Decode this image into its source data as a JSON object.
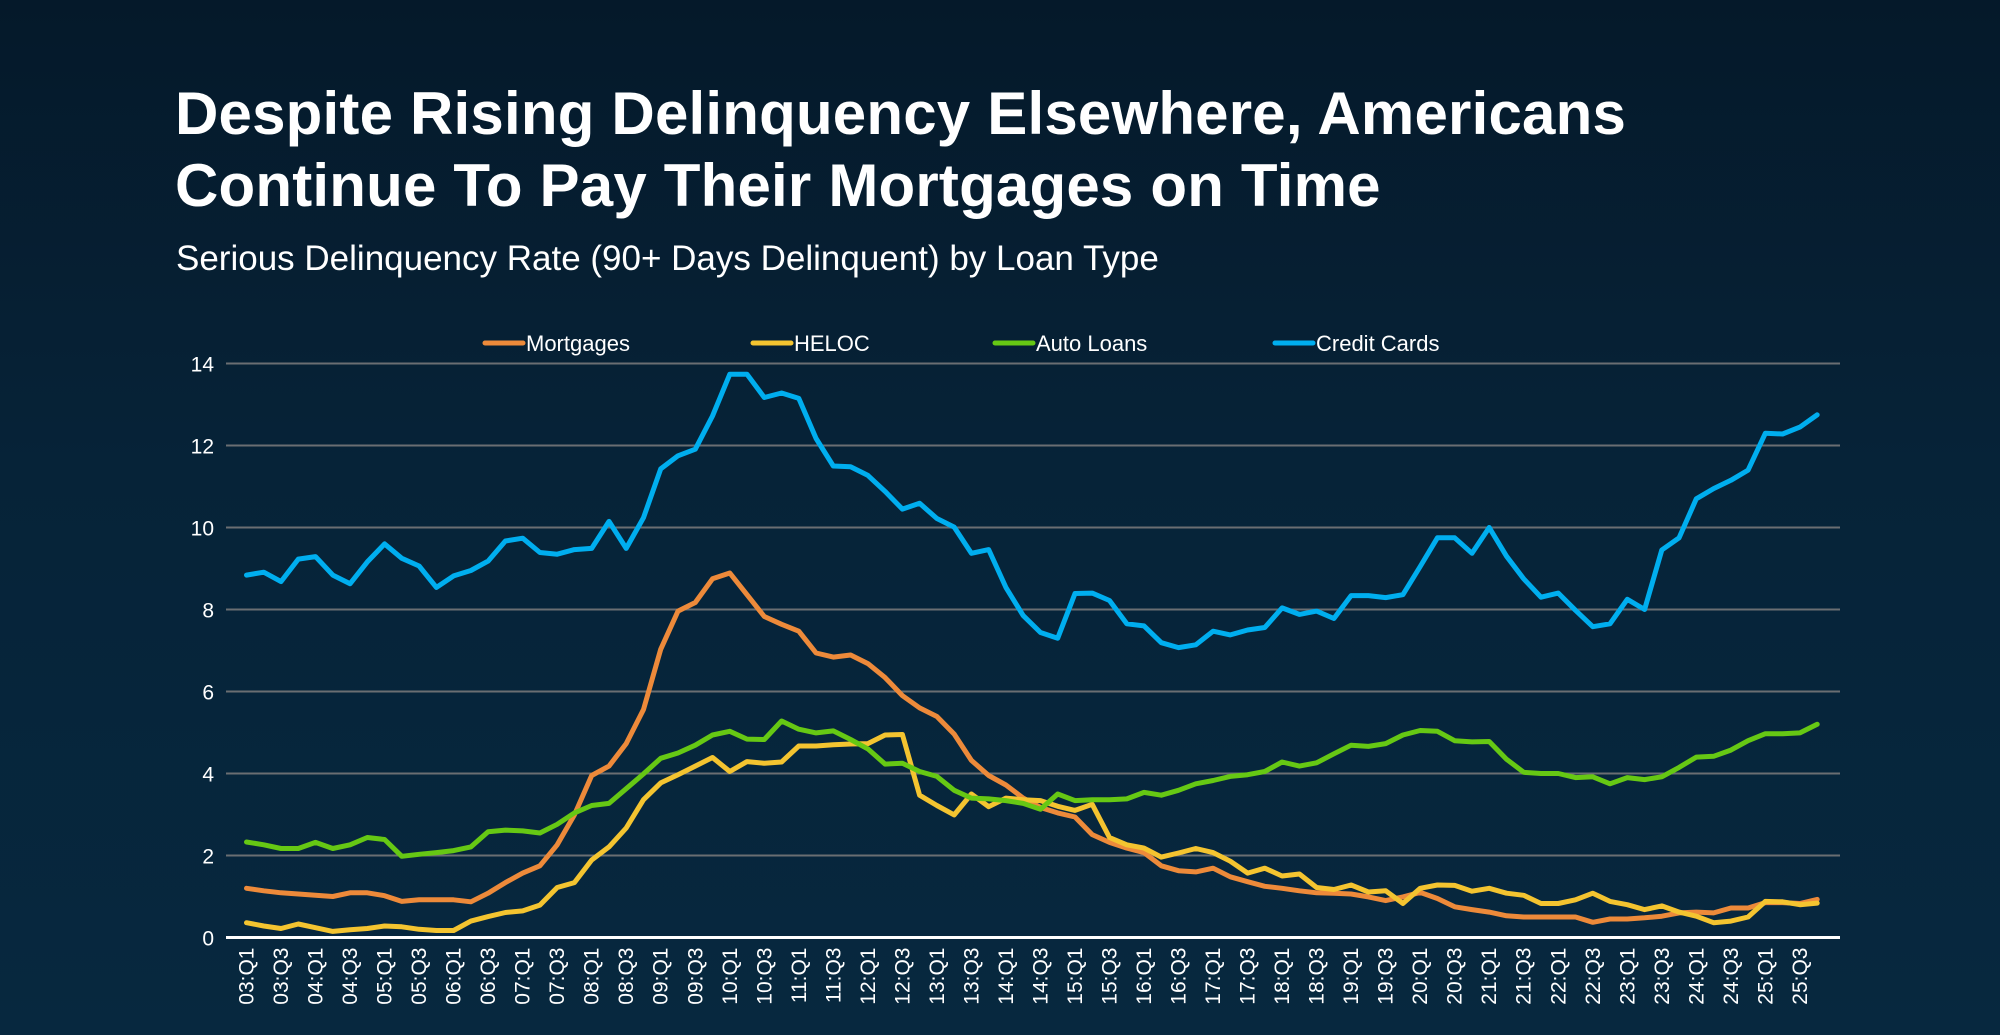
{
  "header": {
    "title_line1": "Despite Rising Delinquency Elsewhere, Americans",
    "title_line2": "Continue To Pay Their Mortgages on Time",
    "subtitle": "Serious Delinquency Rate (90+ Days Delinquent) by Loan Type"
  },
  "chart_data": {
    "type": "line",
    "title": "Serious Delinquency Rate (90+ Days Delinquent) by Loan Type",
    "xlabel": "",
    "ylabel": "",
    "ylim": [
      0,
      14
    ],
    "yticks": [
      0,
      2,
      4,
      6,
      8,
      10,
      12,
      14
    ],
    "grid": true,
    "legend_placement": "top",
    "tick_every": 2,
    "x": [
      "03:Q1",
      "03:Q2",
      "03:Q3",
      "03:Q4",
      "04:Q1",
      "04:Q2",
      "04:Q3",
      "04:Q4",
      "05:Q1",
      "05:Q2",
      "05:Q3",
      "05:Q4",
      "06:Q1",
      "06:Q2",
      "06:Q3",
      "06:Q4",
      "07:Q1",
      "07:Q2",
      "07:Q3",
      "07:Q4",
      "08:Q1",
      "08:Q2",
      "08:Q3",
      "08:Q4",
      "09:Q1",
      "09:Q2",
      "09:Q3",
      "09:Q4",
      "10:Q1",
      "10:Q2",
      "10:Q3",
      "10:Q4",
      "11:Q1",
      "11:Q2",
      "11:Q3",
      "11:Q4",
      "12:Q1",
      "12:Q2",
      "12:Q3",
      "12:Q4",
      "13:Q1",
      "13:Q2",
      "13:Q3",
      "13:Q4",
      "14:Q1",
      "14:Q2",
      "14:Q3",
      "14:Q4",
      "15:Q1",
      "15:Q2",
      "15:Q3",
      "15:Q4",
      "16:Q1",
      "16:Q2",
      "16:Q3",
      "16:Q4",
      "17:Q1",
      "17:Q2",
      "17:Q3",
      "17:Q4",
      "18:Q1",
      "18:Q2",
      "18:Q3",
      "18:Q4",
      "19:Q1",
      "19:Q2",
      "19:Q3",
      "19:Q4",
      "20:Q1",
      "20:Q2",
      "20:Q3",
      "20:Q4",
      "21:Q1",
      "21:Q2",
      "21:Q3",
      "21:Q4",
      "22:Q1",
      "22:Q2",
      "22:Q3",
      "22:Q4",
      "23:Q1",
      "23:Q2",
      "23:Q3",
      "23:Q4",
      "24:Q1",
      "24:Q2",
      "24:Q3",
      "24:Q4",
      "25:Q1",
      "25:Q2",
      "25:Q3",
      "25:Q4"
    ],
    "series": [
      {
        "name": "Mortgages",
        "color": "#ED8A3A",
        "values": [
          1.2,
          1.14,
          1.09,
          1.06,
          1.03,
          1.0,
          1.09,
          1.09,
          1.02,
          0.88,
          0.92,
          0.92,
          0.92,
          0.87,
          1.08,
          1.34,
          1.57,
          1.75,
          2.26,
          2.99,
          3.95,
          4.18,
          4.73,
          5.56,
          7.03,
          7.96,
          8.17,
          8.75,
          8.89,
          8.36,
          7.83,
          7.64,
          7.47,
          6.94,
          6.84,
          6.89,
          6.68,
          6.34,
          5.9,
          5.6,
          5.39,
          4.96,
          4.32,
          3.95,
          3.72,
          3.4,
          3.17,
          3.04,
          2.94,
          2.51,
          2.32,
          2.18,
          2.07,
          1.75,
          1.63,
          1.6,
          1.69,
          1.48,
          1.36,
          1.25,
          1.2,
          1.14,
          1.09,
          1.08,
          1.06,
          0.99,
          0.9,
          0.99,
          1.1,
          0.95,
          0.75,
          0.68,
          0.62,
          0.53,
          0.5,
          0.5,
          0.5,
          0.5,
          0.37,
          0.45,
          0.45,
          0.48,
          0.52,
          0.6,
          0.62,
          0.6,
          0.72,
          0.72,
          0.85,
          0.85,
          0.83,
          0.93
        ]
      },
      {
        "name": "HELOC",
        "color": "#F4C430",
        "values": [
          0.36,
          0.28,
          0.22,
          0.33,
          0.24,
          0.15,
          0.19,
          0.22,
          0.28,
          0.26,
          0.2,
          0.17,
          0.17,
          0.4,
          0.51,
          0.61,
          0.65,
          0.79,
          1.22,
          1.34,
          1.89,
          2.21,
          2.67,
          3.36,
          3.77,
          3.97,
          4.18,
          4.39,
          4.05,
          4.29,
          4.25,
          4.28,
          4.67,
          4.67,
          4.7,
          4.72,
          4.73,
          4.94,
          4.95,
          3.47,
          3.22,
          2.99,
          3.5,
          3.19,
          3.4,
          3.36,
          3.34,
          3.2,
          3.1,
          3.25,
          2.44,
          2.26,
          2.18,
          1.96,
          2.06,
          2.17,
          2.07,
          1.86,
          1.57,
          1.69,
          1.5,
          1.55,
          1.22,
          1.17,
          1.28,
          1.11,
          1.14,
          0.83,
          1.2,
          1.28,
          1.27,
          1.13,
          1.2,
          1.08,
          1.03,
          0.83,
          0.83,
          0.92,
          1.08,
          0.88,
          0.8,
          0.68,
          0.77,
          0.62,
          0.52,
          0.36,
          0.4,
          0.5,
          0.88,
          0.87,
          0.8,
          0.84
        ]
      },
      {
        "name": "Auto Loans",
        "color": "#66C814",
        "values": [
          2.33,
          2.26,
          2.17,
          2.17,
          2.32,
          2.17,
          2.26,
          2.44,
          2.39,
          1.98,
          2.03,
          2.07,
          2.12,
          2.21,
          2.58,
          2.62,
          2.6,
          2.55,
          2.76,
          3.04,
          3.22,
          3.27,
          3.63,
          3.99,
          4.37,
          4.5,
          4.69,
          4.94,
          5.03,
          4.84,
          4.83,
          5.28,
          5.08,
          4.99,
          5.04,
          4.83,
          4.6,
          4.23,
          4.25,
          4.05,
          3.93,
          3.59,
          3.4,
          3.38,
          3.34,
          3.27,
          3.13,
          3.5,
          3.34,
          3.36,
          3.36,
          3.38,
          3.54,
          3.47,
          3.59,
          3.75,
          3.83,
          3.93,
          3.97,
          4.05,
          4.28,
          4.18,
          4.26,
          4.48,
          4.69,
          4.66,
          4.73,
          4.94,
          5.05,
          5.03,
          4.8,
          4.77,
          4.78,
          4.35,
          4.03,
          4.0,
          4.0,
          3.9,
          3.92,
          3.75,
          3.9,
          3.85,
          3.92,
          4.15,
          4.4,
          4.42,
          4.57,
          4.8,
          4.97,
          4.97,
          4.99,
          5.2
        ]
      },
      {
        "name": "Credit Cards",
        "color": "#00AEEF",
        "values": [
          8.84,
          8.91,
          8.68,
          9.23,
          9.29,
          8.84,
          8.63,
          9.16,
          9.6,
          9.25,
          9.06,
          8.54,
          8.82,
          8.95,
          9.18,
          9.67,
          9.74,
          9.39,
          9.35,
          9.46,
          9.49,
          10.15,
          9.49,
          10.24,
          11.43,
          11.75,
          11.91,
          12.72,
          13.74,
          13.74,
          13.17,
          13.28,
          13.15,
          12.17,
          11.5,
          11.48,
          11.27,
          10.88,
          10.45,
          10.59,
          10.22,
          10.01,
          9.37,
          9.46,
          8.54,
          7.85,
          7.44,
          7.3,
          8.39,
          8.4,
          8.22,
          7.65,
          7.6,
          7.19,
          7.07,
          7.14,
          7.47,
          7.38,
          7.5,
          7.56,
          8.04,
          7.88,
          7.96,
          7.78,
          8.34,
          8.34,
          8.29,
          8.36,
          9.05,
          9.75,
          9.75,
          9.37,
          10.0,
          9.3,
          8.75,
          8.3,
          8.4,
          7.98,
          7.58,
          7.65,
          8.25,
          8.0,
          9.45,
          9.75,
          10.7,
          10.95,
          11.15,
          11.4,
          12.3,
          12.28,
          12.45,
          12.75
        ]
      }
    ]
  }
}
